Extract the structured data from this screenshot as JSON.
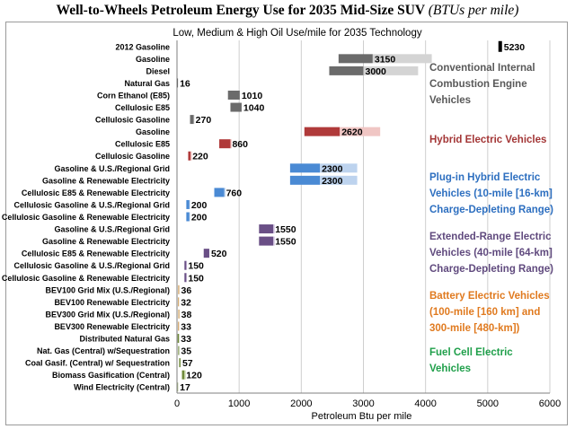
{
  "title": "Well-to-Wheels Petroleum Energy Use for 2035 Mid-Size SUV",
  "title_unit": "(BTUs per mile)",
  "chart_data": {
    "type": "bar",
    "orientation": "horizontal",
    "subtitle": "Low, Medium & High Oil Use/mile for 2035 Technology",
    "xlabel": "Petroleum Btu per mile",
    "xlim": [
      0,
      6000
    ],
    "xticks": [
      "0",
      "1000",
      "2000",
      "3000",
      "4000",
      "5000",
      "6000"
    ],
    "grid": "vertical",
    "categories": [
      "2012 Gasoline",
      "Gasoline",
      "Diesel",
      "Natural Gas",
      "Corn Ethanol (E85)",
      "Cellulosic E85",
      "Cellulosic Gasoline",
      "Gasoline",
      "Cellulosic E85",
      "Cellulosic Gasoline",
      "Gasoline & U.S./Regional Grid",
      "Gasoline & Renewable Electricity",
      "Cellulosic E85 & Renewable Electricity",
      "Cellulosic Gasoline & U.S./Regional Grid",
      "Cellulosic Gasoline & Renewable Electricity",
      "Gasoline & U.S./Regional Grid",
      "Gasoline & Renewable Electricity",
      "Cellulosic E85 & Renewable Electricity",
      "Cellulosic Gasoline & U.S./Regional Grid",
      "Cellulosic Gasoline & Renewable Electricity",
      "BEV100 Grid Mix (U.S./Regional)",
      "BEV100 Renewable Electricity",
      "BEV300 Grid Mix (U.S./Regional)",
      "BEV300 Renewable Electricity",
      "Distributed Natural Gas",
      "Nat. Gas (Central) w/Sequestration",
      "Coal Gasif. (Central) w/ Sequestration",
      "Biomass Gasification (Central)",
      "Wind Electricity (Central)"
    ],
    "low": [
      5150,
      2600,
      2450,
      0,
      820,
      860,
      210,
      2050,
      680,
      180,
      1820,
      1820,
      600,
      150,
      150,
      1320,
      1320,
      430,
      120,
      120,
      20,
      18,
      22,
      18,
      10,
      20,
      35,
      80,
      10
    ],
    "medium": [
      5230,
      3150,
      3000,
      16,
      1010,
      1040,
      270,
      2620,
      860,
      220,
      2300,
      2300,
      760,
      200,
      200,
      1550,
      1550,
      520,
      150,
      150,
      36,
      32,
      38,
      33,
      33,
      35,
      57,
      120,
      17
    ],
    "high": [
      5230,
      4100,
      3880,
      16,
      1010,
      1040,
      280,
      3270,
      880,
      240,
      2900,
      2900,
      780,
      210,
      210,
      1570,
      1570,
      520,
      160,
      160,
      36,
      32,
      38,
      33,
      33,
      35,
      57,
      140,
      17
    ],
    "value_labels": [
      "5230",
      "3150",
      "3000",
      "16",
      "1010",
      "1040",
      "270",
      "2620",
      "860",
      "220",
      "2300",
      "2300",
      "760",
      "200",
      "200",
      "1550",
      "1550",
      "520",
      "150",
      "150",
      "36",
      "32",
      "38",
      "33",
      "33",
      "35",
      "57",
      "120",
      "17"
    ],
    "row_group": [
      0,
      1,
      1,
      1,
      1,
      1,
      1,
      2,
      2,
      2,
      3,
      3,
      3,
      3,
      3,
      4,
      4,
      4,
      4,
      4,
      5,
      5,
      5,
      5,
      6,
      6,
      6,
      6,
      6
    ],
    "groups": [
      {
        "name": "2012 Gasoline",
        "color": "#000000",
        "light": "#000000",
        "label_color": ""
      },
      {
        "name": "Conventional Internal Combustion Engine Vehicles",
        "color": "#6b6b6b",
        "light": "#d4d4d4",
        "label_color": "#595959"
      },
      {
        "name": "Hybrid Electric Vehicles",
        "color": "#b03a3a",
        "light": "#f0c6c4",
        "label_color": "#a33636"
      },
      {
        "name": "Plug-in Hybrid Electric Vehicles (10-mile [16-km] Charge-Depleting Range)",
        "color": "#4a8ad4",
        "light": "#bdd3ee",
        "label_color": "#2d6fc0"
      },
      {
        "name": "Extended-Range Electric Vehicles (40-mile [64-km] Charge-Depleting Range)",
        "color": "#6a4f86",
        "light": "#c8bad8",
        "label_color": "#604a7e"
      },
      {
        "name": "Battery Electric Vehicles (100-mile [160 km] and 300-mile [480-km])",
        "color": "#c9944a",
        "light": "#ebd4b0",
        "label_color": "#e07a1f"
      },
      {
        "name": "Fuel Cell Electric Vehicles",
        "color": "#6f8a3a",
        "light": "#c9d6a8",
        "label_color": "#1f9f4a"
      }
    ],
    "legend": [
      {
        "lines": [
          "Conventional Internal",
          "Combustion Engine",
          "Vehicles"
        ]
      },
      {
        "lines": [
          "Hybrid Electric Vehicles"
        ]
      },
      {
        "lines": [
          "Plug-in Hybrid Electric",
          "Vehicles (10-mile [16-km]",
          "Charge-Depleting Range)"
        ]
      },
      {
        "lines": [
          "Extended-Range Electric",
          "Vehicles (40-mile [64-km]",
          "Charge-Depleting Range)"
        ]
      },
      {
        "lines": [
          "Battery Electric Vehicles",
          "(100-mile [160 km] and",
          "300-mile [480-km])"
        ]
      },
      {
        "lines": [
          "Fuel Cell Electric",
          "Vehicles"
        ]
      }
    ]
  }
}
